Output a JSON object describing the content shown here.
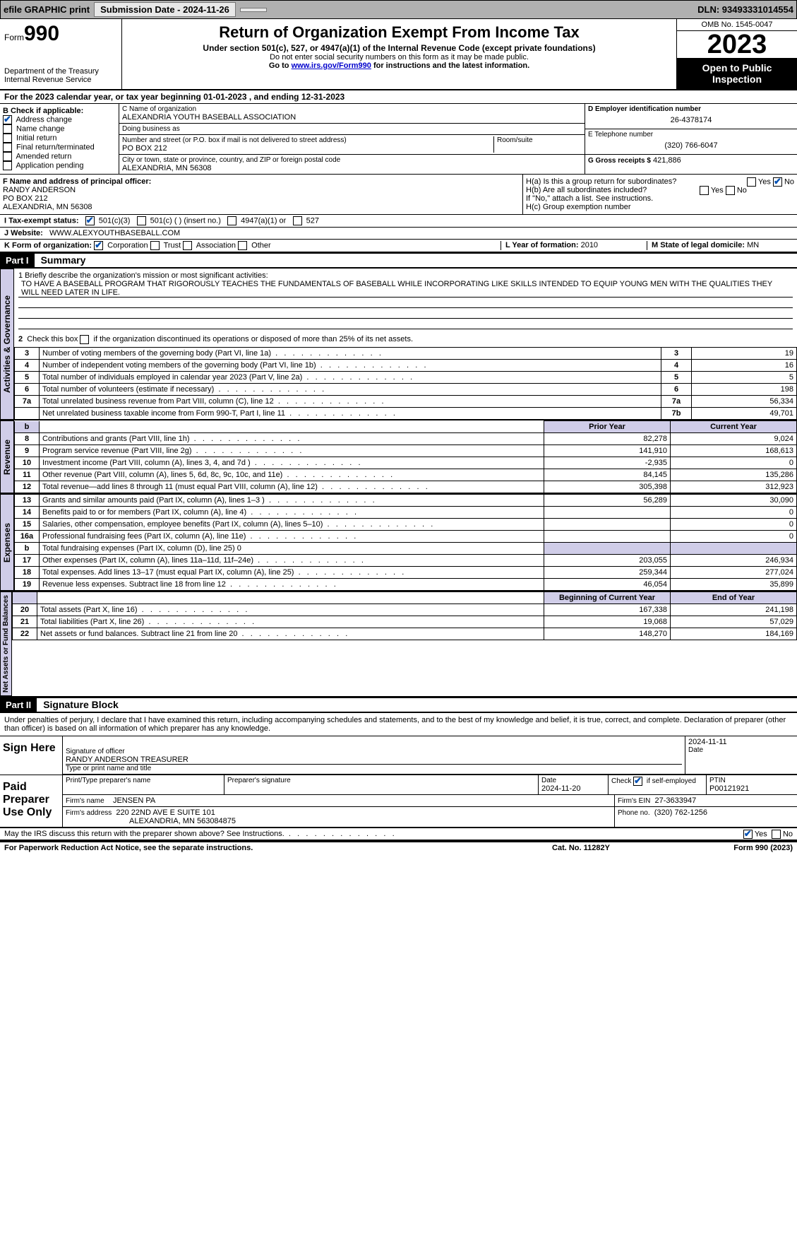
{
  "topbar": {
    "efile": "efile GRAPHIC print",
    "submission": "Submission Date - 2024-11-26",
    "dln": "DLN: 93493331014554"
  },
  "header": {
    "form": "Form",
    "form_no": "990",
    "dept": "Department of the Treasury",
    "irs": "Internal Revenue Service",
    "title": "Return of Organization Exempt From Income Tax",
    "sub": "Under section 501(c), 527, or 4947(a)(1) of the Internal Revenue Code (except private foundations)",
    "note1": "Do not enter social security numbers on this form as it may be made public.",
    "note2_pre": "Go to ",
    "note2_link": "www.irs.gov/Form990",
    "note2_post": " for instructions and the latest information.",
    "omb": "OMB No. 1545-0047",
    "year": "2023",
    "inspect": "Open to Public Inspection"
  },
  "section_a": "For the 2023 calendar year, or tax year beginning 01-01-2023    , and ending 12-31-2023",
  "box_b": {
    "title": "B Check if applicable:",
    "items": [
      {
        "label": "Address change",
        "checked": true
      },
      {
        "label": "Name change",
        "checked": false
      },
      {
        "label": "Initial return",
        "checked": false
      },
      {
        "label": "Final return/terminated",
        "checked": false
      },
      {
        "label": "Amended return",
        "checked": false
      },
      {
        "label": "Application pending",
        "checked": false
      }
    ]
  },
  "box_c": {
    "name_label": "C Name of organization",
    "name": "ALEXANDRIA YOUTH BASEBALL ASSOCIATION",
    "dba_label": "Doing business as",
    "dba": "",
    "addr_label": "Number and street (or P.O. box if mail is not delivered to street address)",
    "room_label": "Room/suite",
    "addr": "PO BOX 212",
    "city_label": "City or town, state or province, country, and ZIP or foreign postal code",
    "city": "ALEXANDRIA, MN  56308"
  },
  "box_d": {
    "ein_label": "D Employer identification number",
    "ein": "26-4378174",
    "phone_label": "E Telephone number",
    "phone": "(320) 766-6047",
    "gross_label": "G Gross receipts $",
    "gross": "421,886"
  },
  "officer": {
    "label": "F  Name and address of principal officer:",
    "name": "RANDY ANDERSON",
    "addr1": "PO BOX 212",
    "addr2": "ALEXANDRIA, MN  56308"
  },
  "h": {
    "ha": "H(a)  Is this a group return for subordinates?",
    "hb": "H(b)  Are all subordinates included?",
    "hb_note": "If \"No,\" attach a list. See instructions.",
    "hc": "H(c)  Group exemption number",
    "yes": "Yes",
    "no": "No"
  },
  "tax_status": {
    "label": "I    Tax-exempt status:",
    "c3": "501(c)(3)",
    "c": "501(c) (  ) (insert no.)",
    "a1": "4947(a)(1) or",
    "527": "527"
  },
  "website": {
    "label": "J   Website:",
    "value": "WWW.ALEXYOUTHBASEBALL.COM"
  },
  "k": {
    "label": "K Form of organization:",
    "corp": "Corporation",
    "trust": "Trust",
    "assoc": "Association",
    "other": "Other"
  },
  "l": {
    "label": "L Year of formation:",
    "value": "2010"
  },
  "m": {
    "label": "M State of legal domicile:",
    "value": "MN"
  },
  "part1": {
    "header": "Part I",
    "title": "Summary",
    "l1_label": "1   Briefly describe the organization's mission or most significant activities:",
    "l1_text": "TO HAVE A BASEBALL PROGRAM THAT RIGOROUSLY TEACHES THE FUNDAMENTALS OF BASEBALL WHILE INCORPORATING LIKE SKILLS INTENDED TO EQUIP YOUNG MEN WITH THE QUALITIES THEY WILL NEED LATER IN LIFE.",
    "l2": "2   Check this box       if the organization discontinued its operations or disposed of more than 25% of its net assets.",
    "rows_ag": [
      {
        "n": "3",
        "label": "Number of voting members of the governing body (Part VI, line 1a)",
        "box": "3",
        "val": "19"
      },
      {
        "n": "4",
        "label": "Number of independent voting members of the governing body (Part VI, line 1b)",
        "box": "4",
        "val": "16"
      },
      {
        "n": "5",
        "label": "Total number of individuals employed in calendar year 2023 (Part V, line 2a)",
        "box": "5",
        "val": "5"
      },
      {
        "n": "6",
        "label": "Total number of volunteers (estimate if necessary)",
        "box": "6",
        "val": "198"
      },
      {
        "n": "7a",
        "label": "Total unrelated business revenue from Part VIII, column (C), line 12",
        "box": "7a",
        "val": "56,334"
      },
      {
        "n": "",
        "label": "Net unrelated business taxable income from Form 990-T, Part I, line 11",
        "box": "7b",
        "val": "49,701"
      }
    ],
    "col_prior": "Prior Year",
    "col_current": "Current Year",
    "rows_rev": [
      {
        "n": "8",
        "label": "Contributions and grants (Part VIII, line 1h)",
        "p": "82,278",
        "c": "9,024"
      },
      {
        "n": "9",
        "label": "Program service revenue (Part VIII, line 2g)",
        "p": "141,910",
        "c": "168,613"
      },
      {
        "n": "10",
        "label": "Investment income (Part VIII, column (A), lines 3, 4, and 7d )",
        "p": "-2,935",
        "c": "0"
      },
      {
        "n": "11",
        "label": "Other revenue (Part VIII, column (A), lines 5, 6d, 8c, 9c, 10c, and 11e)",
        "p": "84,145",
        "c": "135,286"
      },
      {
        "n": "12",
        "label": "Total revenue—add lines 8 through 11 (must equal Part VIII, column (A), line 12)",
        "p": "305,398",
        "c": "312,923"
      }
    ],
    "rows_exp": [
      {
        "n": "13",
        "label": "Grants and similar amounts paid (Part IX, column (A), lines 1–3 )",
        "p": "56,289",
        "c": "30,090"
      },
      {
        "n": "14",
        "label": "Benefits paid to or for members (Part IX, column (A), line 4)",
        "p": "",
        "c": "0"
      },
      {
        "n": "15",
        "label": "Salaries, other compensation, employee benefits (Part IX, column (A), lines 5–10)",
        "p": "",
        "c": "0"
      },
      {
        "n": "16a",
        "label": "Professional fundraising fees (Part IX, column (A), line 11e)",
        "p": "",
        "c": "0"
      },
      {
        "n": "b",
        "label": "Total fundraising expenses (Part IX, column (D), line 25) 0",
        "shade": true
      },
      {
        "n": "17",
        "label": "Other expenses (Part IX, column (A), lines 11a–11d, 11f–24e)",
        "p": "203,055",
        "c": "246,934"
      },
      {
        "n": "18",
        "label": "Total expenses. Add lines 13–17 (must equal Part IX, column (A), line 25)",
        "p": "259,344",
        "c": "277,024"
      },
      {
        "n": "19",
        "label": "Revenue less expenses. Subtract line 18 from line 12",
        "p": "46,054",
        "c": "35,899"
      }
    ],
    "col_begin": "Beginning of Current Year",
    "col_end": "End of Year",
    "rows_net": [
      {
        "n": "20",
        "label": "Total assets (Part X, line 16)",
        "p": "167,338",
        "c": "241,198"
      },
      {
        "n": "21",
        "label": "Total liabilities (Part X, line 26)",
        "p": "19,068",
        "c": "57,029"
      },
      {
        "n": "22",
        "label": "Net assets or fund balances. Subtract line 21 from line 20",
        "p": "148,270",
        "c": "184,169"
      }
    ]
  },
  "part2": {
    "header": "Part II",
    "title": "Signature Block",
    "decl": "Under penalties of perjury, I declare that I have examined this return, including accompanying schedules and statements, and to the best of my knowledge and belief, it is true, correct, and complete. Declaration of preparer (other than officer) is based on all information of which preparer has any knowledge.",
    "sign_here": "Sign Here",
    "sig_officer_label": "Signature of officer",
    "sig_officer": "RANDY ANDERSON  TREASURER",
    "sig_type_label": "Type or print name and title",
    "sig_date": "2024-11-11",
    "date_label": "Date",
    "paid": "Paid Preparer Use Only",
    "prep_name_label": "Print/Type preparer's name",
    "prep_sig_label": "Preparer's signature",
    "prep_date_label": "Date",
    "prep_date": "2024-11-20",
    "check_if": "Check        if self-employed",
    "ptin_label": "PTIN",
    "ptin": "P00121921",
    "firm_name_label": "Firm's name",
    "firm_name": "JENSEN PA",
    "firm_ein_label": "Firm's EIN",
    "firm_ein": "27-3633947",
    "firm_addr_label": "Firm's address",
    "firm_addr1": "220 22ND AVE E SUITE 101",
    "firm_addr2": "ALEXANDRIA, MN  563084875",
    "firm_phone_label": "Phone no.",
    "firm_phone": "(320) 762-1256",
    "discuss": "May the IRS discuss this return with the preparer shown above? See Instructions.",
    "yes": "Yes",
    "no": "No"
  },
  "footer": {
    "left": "For Paperwork Reduction Act Notice, see the separate instructions.",
    "center": "Cat. No. 11282Y",
    "right": "Form 990 (2023)"
  },
  "tabs": {
    "ag": "Activities & Governance",
    "rev": "Revenue",
    "exp": "Expenses",
    "net": "Net Assets or Fund Balances"
  }
}
